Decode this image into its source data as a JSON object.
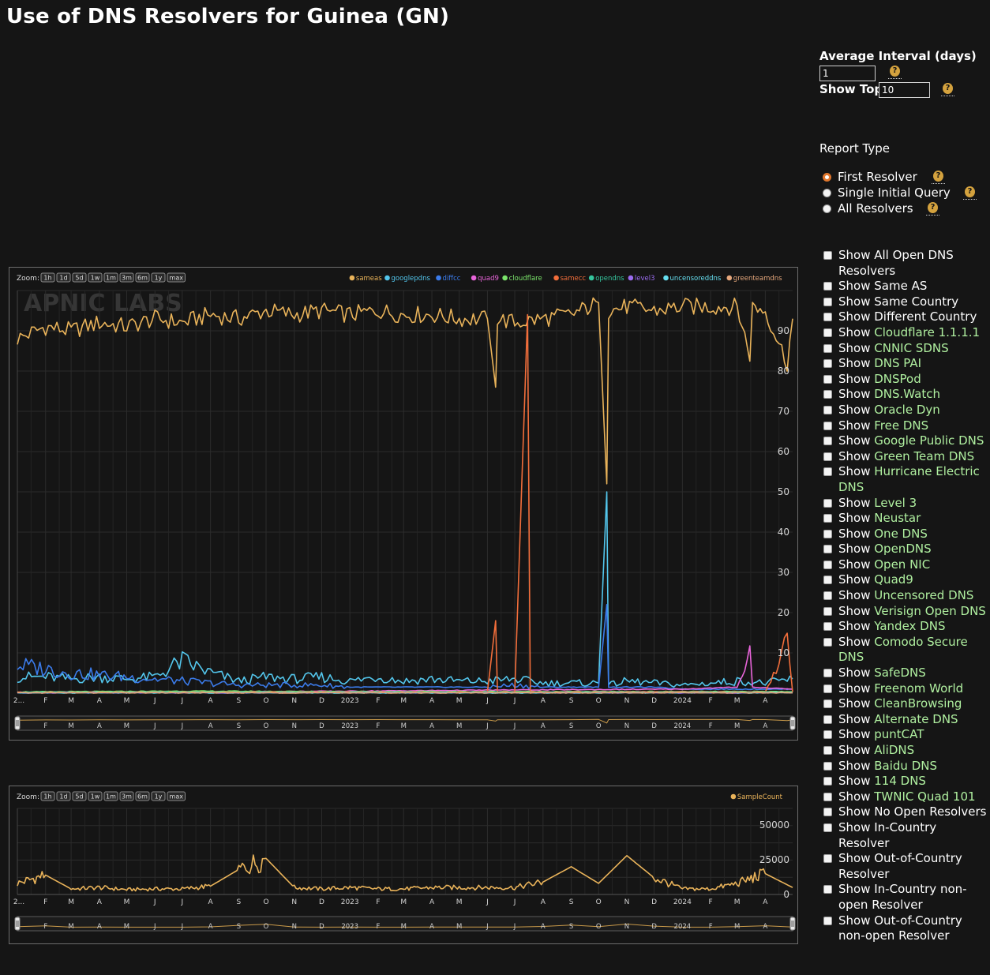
{
  "page": {
    "title": "Use of DNS Resolvers for Guinea (GN)"
  },
  "controls": {
    "average_interval_label": "Average Interval (days)",
    "average_interval_value": "1",
    "show_top_label": "Show Top",
    "show_top_value": "10",
    "help_glyph": "?",
    "report_type_label": "Report Type",
    "report_types": [
      {
        "label": "First Resolver",
        "checked": true
      },
      {
        "label": "Single Initial Query",
        "checked": false
      },
      {
        "label": "All Resolvers",
        "checked": false
      }
    ],
    "checkboxes": [
      {
        "prefix": "Show ",
        "name": "All Open DNS Resolvers",
        "green": false
      },
      {
        "prefix": "Show ",
        "name": "Same AS",
        "green": false
      },
      {
        "prefix": "Show ",
        "name": "Same Country",
        "green": false
      },
      {
        "prefix": "Show ",
        "name": "Different Country",
        "green": false
      },
      {
        "prefix": "Show ",
        "name": "Cloudflare 1.1.1.1",
        "green": true
      },
      {
        "prefix": "Show ",
        "name": "CNNIC SDNS",
        "green": true
      },
      {
        "prefix": "Show ",
        "name": "DNS PAI",
        "green": true
      },
      {
        "prefix": "Show ",
        "name": "DNSPod",
        "green": true
      },
      {
        "prefix": "Show ",
        "name": "DNS.Watch",
        "green": true
      },
      {
        "prefix": "Show ",
        "name": "Oracle Dyn",
        "green": true
      },
      {
        "prefix": "Show ",
        "name": "Free DNS",
        "green": true
      },
      {
        "prefix": "Show ",
        "name": "Google Public DNS",
        "green": true
      },
      {
        "prefix": "Show ",
        "name": "Green Team DNS",
        "green": true
      },
      {
        "prefix": "Show ",
        "name": "Hurricane Electric DNS",
        "green": true
      },
      {
        "prefix": "Show ",
        "name": "Level 3",
        "green": true
      },
      {
        "prefix": "Show ",
        "name": "Neustar",
        "green": true
      },
      {
        "prefix": "Show ",
        "name": "One DNS",
        "green": true
      },
      {
        "prefix": "Show ",
        "name": "OpenDNS",
        "green": true
      },
      {
        "prefix": "Show ",
        "name": "Open NIC",
        "green": true
      },
      {
        "prefix": "Show ",
        "name": "Quad9",
        "green": true
      },
      {
        "prefix": "Show ",
        "name": "Uncensored DNS",
        "green": true
      },
      {
        "prefix": "Show ",
        "name": "Verisign Open DNS",
        "green": true
      },
      {
        "prefix": "Show ",
        "name": "Yandex DNS",
        "green": true
      },
      {
        "prefix": "Show ",
        "name": "Comodo Secure DNS",
        "green": true
      },
      {
        "prefix": "Show ",
        "name": "SafeDNS",
        "green": true
      },
      {
        "prefix": "Show ",
        "name": "Freenom World",
        "green": true
      },
      {
        "prefix": "Show ",
        "name": "CleanBrowsing",
        "green": true
      },
      {
        "prefix": "Show ",
        "name": "Alternate DNS",
        "green": true
      },
      {
        "prefix": "Show ",
        "name": "puntCAT",
        "green": true
      },
      {
        "prefix": "Show ",
        "name": "AliDNS",
        "green": true
      },
      {
        "prefix": "Show ",
        "name": "Baidu DNS",
        "green": true
      },
      {
        "prefix": "Show ",
        "name": "114 DNS",
        "green": true
      },
      {
        "prefix": "Show ",
        "name": "TWNIC Quad 101",
        "green": true
      },
      {
        "prefix": "Show ",
        "name": "No Open Resolvers",
        "green": false
      },
      {
        "prefix": "Show ",
        "name": "In-Country Resolver",
        "green": false
      },
      {
        "prefix": "Show ",
        "name": "Out-of-Country Resolver",
        "green": false
      },
      {
        "prefix": "Show ",
        "name": "In-Country non-open Resolver",
        "green": false
      },
      {
        "prefix": "Show ",
        "name": "Out-of-Country non-open Resolver",
        "green": false
      }
    ]
  },
  "chart_data": [
    {
      "type": "line",
      "zoom_label": "Zoom:",
      "zoom_buttons": [
        "1h",
        "1d",
        "5d",
        "1w",
        "1m",
        "3m",
        "6m",
        "1y",
        "max"
      ],
      "watermark": "APNIC LABS",
      "ylim": [
        0,
        100
      ],
      "y_ticks": [
        "10",
        "20",
        "30",
        "40",
        "50",
        "60",
        "70",
        "80",
        "90"
      ],
      "x_tick_labels": [
        "2...",
        "F",
        "M",
        "A",
        "M",
        "J",
        "J",
        "A",
        "S",
        "O",
        "N",
        "D",
        "2023",
        "F",
        "M",
        "A",
        "M",
        "J",
        "J",
        "A",
        "S",
        "O",
        "N",
        "D",
        "2024",
        "F",
        "M",
        "A"
      ],
      "range_tick_labels": [
        "F",
        "M",
        "A",
        "M",
        "J",
        "J",
        "A",
        "S",
        "O",
        "N",
        "D",
        "2023",
        "F",
        "M",
        "A",
        "M",
        "J",
        "J",
        "A",
        "S",
        "O",
        "N",
        "D",
        "2024",
        "F",
        "M",
        "A"
      ],
      "x_range": [
        "2022-01",
        "2024-05"
      ],
      "legend_position": "top-right",
      "series": [
        {
          "name": "sameas",
          "color": "#e9b35a",
          "x": [
            "2022-01",
            "2022-02",
            "2022-03",
            "2022-04",
            "2022-05",
            "2022-06",
            "2022-07",
            "2022-08",
            "2022-09",
            "2022-10",
            "2022-11",
            "2022-12",
            "2023-01",
            "2023-02",
            "2023-03",
            "2023-04",
            "2023-05",
            "2023-06",
            "2023-06-10",
            "2023-06-12",
            "2023-07",
            "2023-08",
            "2023-09",
            "2023-10",
            "2023-10-10",
            "2023-10-12",
            "2023-11",
            "2023-12",
            "2024-01",
            "2024-02",
            "2024-03",
            "2024-03-15",
            "2024-03-18",
            "2024-04",
            "2024-04-25",
            "2024-05"
          ],
          "values": [
            88,
            91,
            90,
            92,
            91,
            93,
            92,
            94,
            93,
            95,
            94,
            95,
            94,
            95,
            94,
            94,
            93,
            93,
            76,
            93,
            92,
            93,
            94,
            97,
            52,
            95,
            96,
            95,
            96,
            96,
            96,
            84,
            96,
            95,
            82,
            93
          ]
        },
        {
          "name": "googlepdns",
          "color": "#53c6ec",
          "x": [
            "2022-01",
            "2022-02",
            "2022-03",
            "2022-04",
            "2022-05",
            "2022-06",
            "2022-07",
            "2022-08",
            "2022-09",
            "2022-10",
            "2022-11",
            "2022-12",
            "2023-01",
            "2023-02",
            "2023-03",
            "2023-04",
            "2023-05",
            "2023-06",
            "2023-07",
            "2023-08",
            "2023-09",
            "2023-10",
            "2023-10-10",
            "2023-10-12",
            "2023-11",
            "2023-12",
            "2024-01",
            "2024-02",
            "2024-03",
            "2024-04",
            "2024-05"
          ],
          "values": [
            4,
            4,
            3.5,
            4,
            3.5,
            4,
            8,
            5,
            3,
            4,
            3.5,
            4,
            3,
            4,
            3,
            3.5,
            3,
            3,
            3.5,
            2.5,
            2.5,
            2.5,
            50,
            2,
            3,
            2.5,
            2,
            2.5,
            3,
            2.5,
            3.5
          ]
        },
        {
          "name": "diffcc",
          "color": "#3b7bea",
          "x": [
            "2022-01",
            "2022-02",
            "2022-03",
            "2022-04",
            "2022-05",
            "2022-06",
            "2022-07",
            "2022-08",
            "2022-09",
            "2022-10",
            "2022-11",
            "2022-12",
            "2023-01",
            "2023-02",
            "2023-03",
            "2023-04",
            "2023-05",
            "2023-06",
            "2023-07",
            "2023-08",
            "2023-09",
            "2023-10",
            "2023-10-10",
            "2023-10-12",
            "2023-11",
            "2023-12",
            "2024-01",
            "2024-02",
            "2024-03",
            "2024-04",
            "2024-05"
          ],
          "values": [
            7,
            6,
            5,
            4.5,
            4,
            3.5,
            3,
            2.5,
            2,
            2,
            2,
            2,
            1.5,
            1.5,
            1.5,
            1.5,
            1.5,
            1.5,
            2,
            1.5,
            1.5,
            1.5,
            22,
            1.5,
            1.5,
            1.5,
            1,
            1,
            1,
            1,
            1
          ]
        },
        {
          "name": "quad9",
          "color": "#e764d9",
          "x": [
            "2022-01",
            "2022-07",
            "2023-01",
            "2023-07",
            "2024-01",
            "2024-03",
            "2024-03-15",
            "2024-03-18",
            "2024-05"
          ],
          "values": [
            0.2,
            0.3,
            0.5,
            0.8,
            1,
            1.5,
            10,
            1.5,
            1
          ]
        },
        {
          "name": "cloudflare",
          "color": "#7be46b",
          "x": [
            "2022-01",
            "2022-07",
            "2023-01",
            "2023-07",
            "2024-01",
            "2024-05"
          ],
          "values": [
            0.3,
            0.5,
            0.4,
            0.4,
            0.4,
            0.4
          ]
        },
        {
          "name": "samecc",
          "color": "#f26e3b",
          "x": [
            "2022-01",
            "2023-06",
            "2023-06-10",
            "2023-06-12",
            "2023-07",
            "2023-07-15",
            "2023-07-18",
            "2023-08",
            "2024-04",
            "2024-04-25",
            "2024-05"
          ],
          "values": [
            0.2,
            0.3,
            18,
            0.3,
            0.3,
            94,
            0.3,
            0.3,
            0.3,
            13,
            0.3
          ]
        },
        {
          "name": "opendns",
          "color": "#35c59d",
          "x": [
            "2022-01",
            "2024-05"
          ],
          "values": [
            0.2,
            0.2
          ]
        },
        {
          "name": "level3",
          "color": "#9b6cf0",
          "x": [
            "2022-01",
            "2024-05"
          ],
          "values": [
            0.1,
            0.1
          ]
        },
        {
          "name": "uncensoreddns",
          "color": "#66dff0",
          "x": [
            "2022-01",
            "2024-05"
          ],
          "values": [
            0.1,
            0.1
          ]
        },
        {
          "name": "greenteamdns",
          "color": "#e5a77c",
          "x": [
            "2022-01",
            "2024-05"
          ],
          "values": [
            0.1,
            0.1
          ]
        }
      ]
    },
    {
      "type": "line",
      "zoom_label": "Zoom:",
      "zoom_buttons": [
        "1h",
        "1d",
        "5d",
        "1w",
        "1m",
        "3m",
        "6m",
        "1y",
        "max"
      ],
      "ylim": [
        0,
        62000
      ],
      "y_ticks": [
        "0",
        "25000",
        "50000"
      ],
      "x_tick_labels": [
        "2...",
        "F",
        "M",
        "A",
        "M",
        "J",
        "J",
        "A",
        "S",
        "O",
        "N",
        "D",
        "2023",
        "F",
        "M",
        "A",
        "M",
        "J",
        "J",
        "A",
        "S",
        "O",
        "N",
        "D",
        "2024",
        "F",
        "M",
        "A"
      ],
      "range_tick_labels": [
        "F",
        "M",
        "A",
        "M",
        "J",
        "J",
        "A",
        "S",
        "O",
        "N",
        "D",
        "2023",
        "F",
        "M",
        "A",
        "M",
        "J",
        "J",
        "A",
        "S",
        "O",
        "N",
        "D",
        "2024",
        "F",
        "M",
        "A"
      ],
      "x_range": [
        "2022-01",
        "2024-05"
      ],
      "legend_position": "top-right",
      "series": [
        {
          "name": "SampleCount",
          "color": "#e9b35a",
          "x": [
            "2022-01",
            "2022-02",
            "2022-03",
            "2022-04",
            "2022-05",
            "2022-06",
            "2022-07",
            "2022-08",
            "2022-09",
            "2022-10",
            "2022-11",
            "2022-12",
            "2023-01",
            "2023-02",
            "2023-03",
            "2023-04",
            "2023-05",
            "2023-06",
            "2023-07",
            "2023-08",
            "2023-09",
            "2023-10",
            "2023-11",
            "2023-12",
            "2024-01",
            "2024-02",
            "2024-03",
            "2024-04",
            "2024-05"
          ],
          "values": [
            8000,
            14000,
            4000,
            5000,
            3500,
            4000,
            4000,
            6000,
            18000,
            26000,
            5000,
            4000,
            5000,
            4000,
            4000,
            5000,
            5000,
            5000,
            5000,
            9000,
            20000,
            8000,
            28000,
            12000,
            4000,
            4000,
            8000,
            15000,
            5000
          ]
        }
      ]
    }
  ]
}
